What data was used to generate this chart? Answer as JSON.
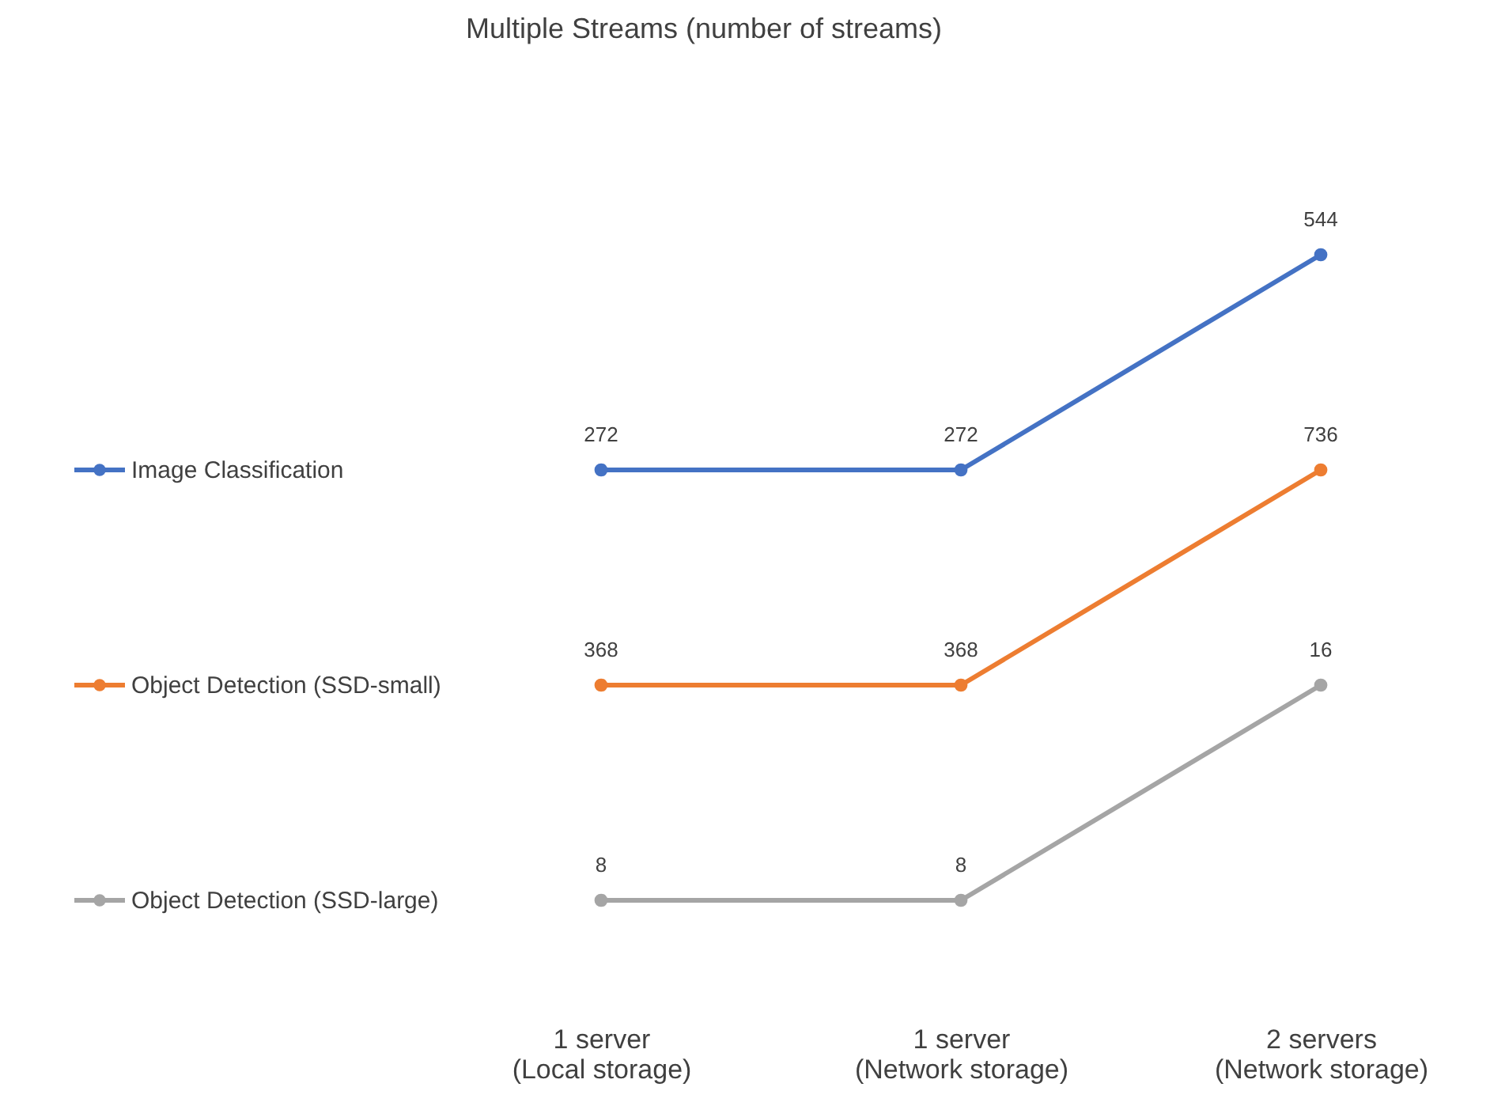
{
  "chart_data": [
    {
      "type": "line",
      "title": "Multiple Streams (number of streams)",
      "categories": [
        null,
        null,
        null
      ],
      "series": [
        {
          "name": "Image Classification",
          "color": "#4472c4",
          "values": [
            272,
            272,
            544
          ]
        }
      ],
      "data_labels": true,
      "legend": "left",
      "tick_labels": false,
      "marker": "circle"
    },
    {
      "type": "line",
      "categories": [
        null,
        null,
        null
      ],
      "series": [
        {
          "name": "Object Detection (SSD-small)",
          "color": "#ed7d31",
          "values": [
            368,
            368,
            736
          ]
        }
      ],
      "data_labels": true,
      "legend": "left",
      "tick_labels": false,
      "marker": "circle"
    },
    {
      "type": "line",
      "categories": [
        "1 server\n(Local storage)",
        "1 server\n(Network storage)",
        "2 servers\n(Network storage)"
      ],
      "series": [
        {
          "name": "Object Detection (SSD-large)",
          "color": "#a5a5a5",
          "values": [
            8,
            8,
            16
          ]
        }
      ],
      "data_labels": true,
      "legend": "left",
      "tick_labels": "x",
      "marker": "circle"
    }
  ]
}
